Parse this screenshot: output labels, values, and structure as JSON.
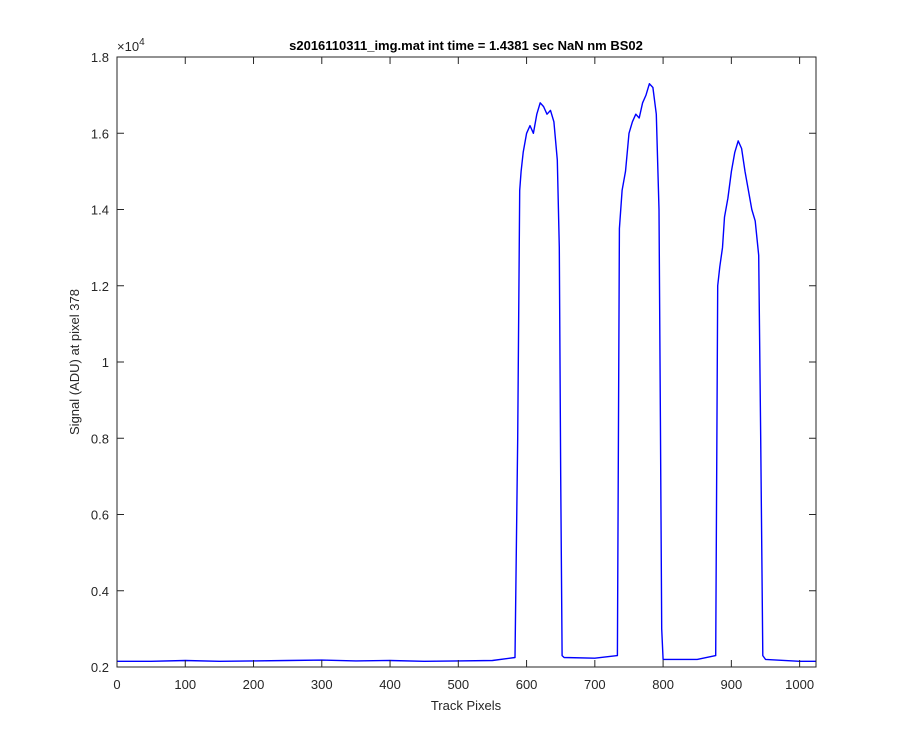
{
  "chart_data": {
    "type": "line",
    "title": "s2016110311_img.mat int time = 1.4381 sec  NaN nm BS02",
    "xlabel": "Track Pixels",
    "ylabel": "Signal (ADU) at pixel 378",
    "xlim": [
      0,
      1024
    ],
    "ylim": [
      2000,
      18000
    ],
    "x_ticks": [
      0,
      100,
      200,
      300,
      400,
      500,
      600,
      700,
      800,
      900,
      1000
    ],
    "y_ticks": [
      2000,
      4000,
      6000,
      8000,
      10000,
      12000,
      14000,
      16000,
      18000
    ],
    "y_tick_labels": [
      "0.2",
      "0.4",
      "0.6",
      "0.8",
      "1",
      "1.2",
      "1.4",
      "1.6",
      "1.8"
    ],
    "y_exponent_label": "×10",
    "y_exponent_power": "4",
    "grid": false,
    "series": [
      {
        "color": "#0000ff",
        "x": [
          0,
          50,
          100,
          150,
          200,
          250,
          300,
          350,
          400,
          450,
          500,
          550,
          583,
          587,
          590,
          592,
          595,
          600,
          605,
          610,
          615,
          620,
          625,
          630,
          635,
          640,
          645,
          648,
          650,
          652,
          655,
          700,
          733,
          736,
          740,
          745,
          750,
          755,
          760,
          765,
          770,
          775,
          780,
          785,
          790,
          794,
          796,
          798,
          800,
          850,
          877,
          880,
          883,
          887,
          890,
          895,
          900,
          905,
          910,
          915,
          920,
          925,
          930,
          935,
          940,
          943,
          946,
          950,
          1000,
          1024
        ],
        "y": [
          2150,
          2150,
          2170,
          2150,
          2160,
          2170,
          2180,
          2160,
          2170,
          2150,
          2160,
          2170,
          2250,
          8000,
          14500,
          15000,
          15500,
          16000,
          16200,
          16000,
          16500,
          16800,
          16700,
          16500,
          16600,
          16300,
          15300,
          13000,
          7000,
          2300,
          2250,
          2230,
          2300,
          13500,
          14500,
          15000,
          16000,
          16300,
          16500,
          16400,
          16800,
          17000,
          17300,
          17200,
          16500,
          14000,
          8500,
          3000,
          2200,
          2200,
          2300,
          12000,
          12500,
          13000,
          13800,
          14300,
          15000,
          15500,
          15800,
          15600,
          15000,
          14500,
          14000,
          13700,
          12800,
          8000,
          2300,
          2200,
          2150,
          2150
        ]
      }
    ]
  }
}
